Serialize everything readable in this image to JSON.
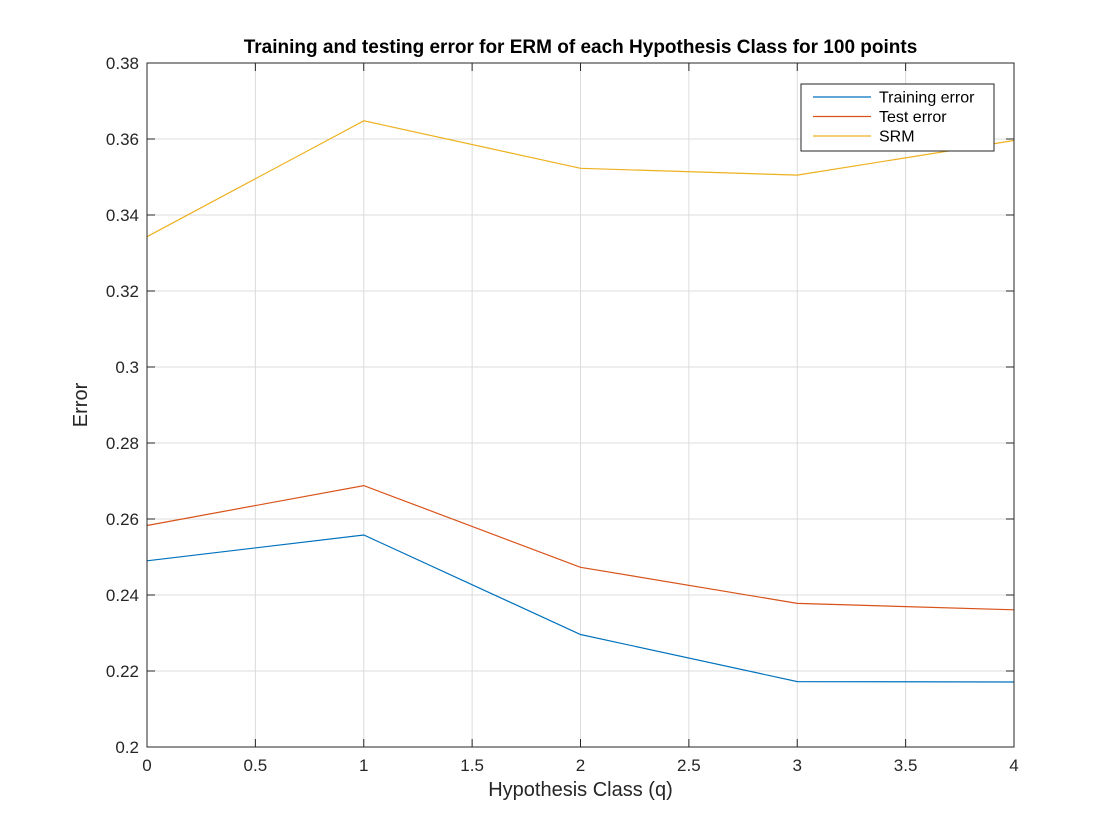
{
  "chart_data": {
    "type": "line",
    "title": "Training and testing error for ERM of each Hypothesis Class for 100 points",
    "xlabel": "Hypothesis Class (q)",
    "ylabel": "Error",
    "xlim": [
      0,
      4
    ],
    "ylim": [
      0.2,
      0.38
    ],
    "xticks": [
      0,
      0.5,
      1,
      1.5,
      2,
      2.5,
      3,
      3.5,
      4
    ],
    "xtick_labels": [
      "0",
      "0.5",
      "1",
      "1.5",
      "2",
      "2.5",
      "3",
      "3.5",
      "4"
    ],
    "yticks": [
      0.2,
      0.22,
      0.24,
      0.26,
      0.28,
      0.3,
      0.32,
      0.34,
      0.36,
      0.38
    ],
    "ytick_labels": [
      "0.2",
      "0.22",
      "0.24",
      "0.26",
      "0.28",
      "0.3",
      "0.32",
      "0.34",
      "0.36",
      "0.38"
    ],
    "grid": true,
    "legend_position": "top-right",
    "x": [
      0,
      1,
      2,
      3,
      4
    ],
    "series": [
      {
        "name": "Training error",
        "color": "#0072BD",
        "values": [
          0.249,
          0.2558,
          0.2296,
          0.2172,
          0.2171
        ]
      },
      {
        "name": "Test error",
        "color": "#D95319",
        "values": [
          0.2583,
          0.2688,
          0.2473,
          0.2378,
          0.2361
        ]
      },
      {
        "name": "SRM",
        "color": "#EDB120",
        "values": [
          0.3343,
          0.3648,
          0.3523,
          0.3505,
          0.3596
        ]
      }
    ]
  }
}
